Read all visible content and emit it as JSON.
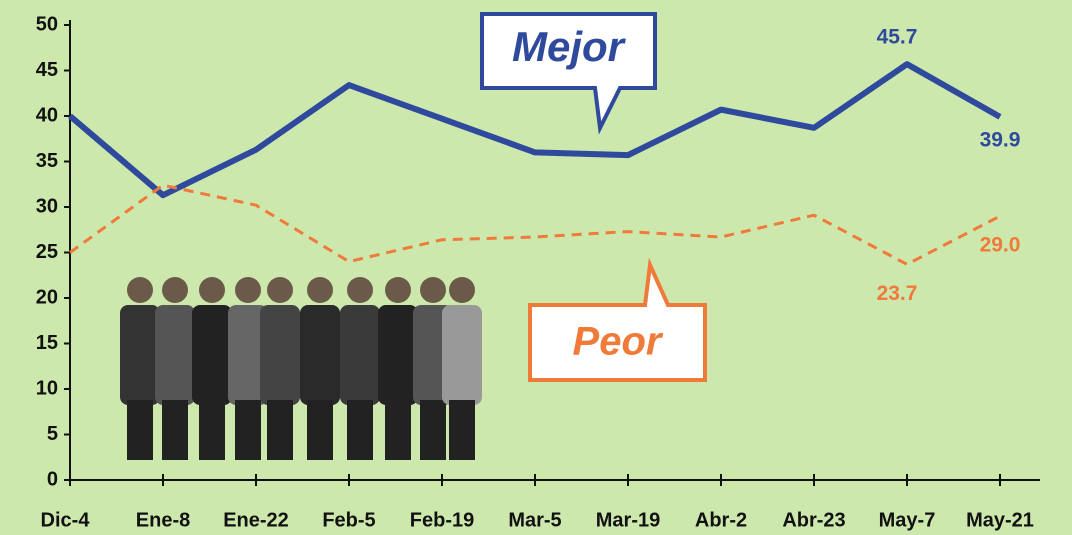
{
  "chart_data": {
    "type": "line",
    "categories": [
      "Dic-4",
      "Ene-8",
      "Ene-22",
      "Feb-5",
      "Feb-19",
      "Mar-5",
      "Mar-19",
      "Abr-2",
      "Abr-23",
      "May-7",
      "May-21"
    ],
    "series": [
      {
        "name": "Mejor",
        "color": "#2f4a9c",
        "values": [
          40,
          31.3,
          36.3,
          43.4,
          39.7,
          36,
          35.7,
          40.7,
          38.7,
          45.7,
          39.9
        ],
        "value_labels": [
          null,
          null,
          null,
          null,
          null,
          null,
          null,
          null,
          null,
          "45.7",
          "39.9"
        ]
      },
      {
        "name": "Peor",
        "color": "#f07a3a",
        "values": [
          25,
          32.4,
          30.2,
          24,
          26.4,
          26.7,
          27.3,
          26.7,
          29.1,
          23.7,
          29
        ],
        "value_labels": [
          null,
          null,
          null,
          null,
          null,
          null,
          null,
          null,
          null,
          "23.7",
          "29.0"
        ]
      }
    ],
    "ylim": [
      0,
      50
    ],
    "yticks": [
      0,
      5,
      10,
      15,
      20,
      25,
      30,
      35,
      40,
      45,
      50
    ]
  }
}
